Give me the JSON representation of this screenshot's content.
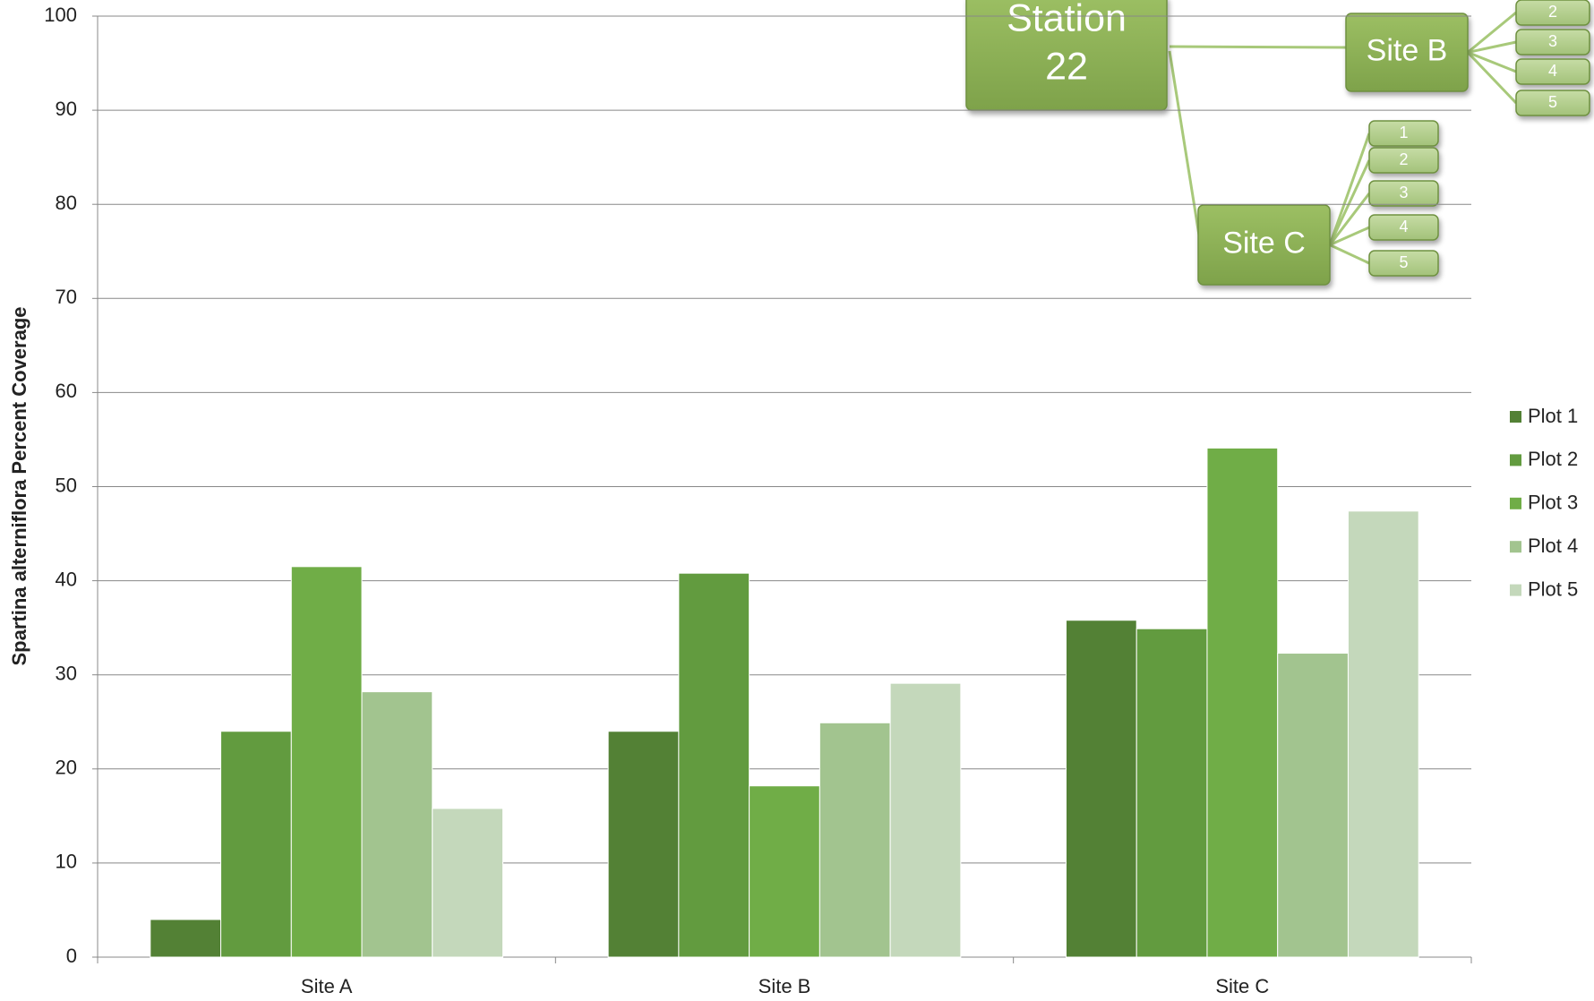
{
  "chart_data": {
    "type": "bar",
    "y_label": "Spartina alterniflora Percent Coverage",
    "categories": [
      "Site A",
      "Site B",
      "Site C"
    ],
    "series": [
      {
        "name": "Plot 1",
        "color": "#538135",
        "values": [
          4,
          24,
          35.8
        ]
      },
      {
        "name": "Plot 2",
        "color": "#629b3f",
        "values": [
          24,
          40.8,
          34.9
        ]
      },
      {
        "name": "Plot 3",
        "color": "#70ad47",
        "values": [
          41.5,
          18.2,
          54.1
        ]
      },
      {
        "name": "Plot 4",
        "color": "#a2c48f",
        "values": [
          28.2,
          24.9,
          32.3
        ]
      },
      {
        "name": "Plot 5",
        "color": "#c4d8bb",
        "values": [
          15.8,
          29.1,
          47.4
        ]
      }
    ],
    "ylim": [
      0,
      100
    ],
    "yticks": [
      0,
      10,
      20,
      30,
      40,
      50,
      60,
      70,
      80,
      90,
      100
    ],
    "grid": true,
    "legend": "right"
  },
  "diagram": {
    "root": [
      "Station",
      "22"
    ],
    "nodes": [
      {
        "label": "Site B",
        "children": [
          "2",
          "3",
          "4",
          "5"
        ]
      },
      {
        "label": "Site C",
        "children": [
          "1",
          "2",
          "3",
          "4",
          "5"
        ]
      }
    ]
  }
}
